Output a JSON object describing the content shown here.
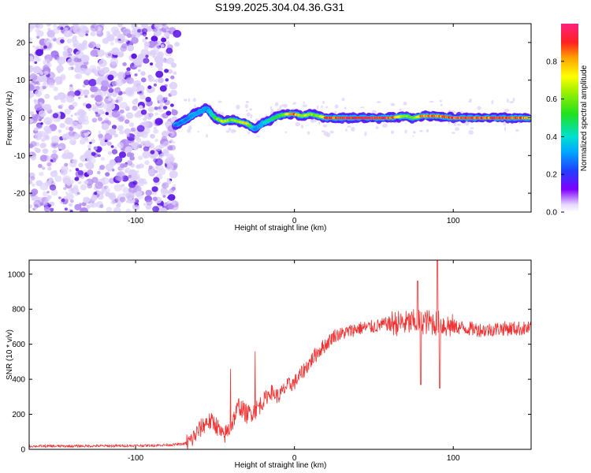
{
  "title": "S199.2025.304.04.36.G31",
  "chart_data": [
    {
      "type": "heatmap",
      "xlabel": "Height of straight line (km)",
      "ylabel": "Frequency (Hz)",
      "xlim": [
        -167,
        149
      ],
      "ylim": [
        -25,
        25
      ],
      "xticks": [
        -100,
        0,
        100
      ],
      "xtick_labels": [
        "-100",
        "0",
        "100"
      ],
      "yticks": [
        -20,
        -10,
        0,
        10,
        20
      ],
      "ytick_labels": [
        "-20",
        "-10",
        "0",
        "10",
        "20"
      ],
      "colorbar": {
        "label": "Normalized spectral amplitude",
        "range": [
          0,
          1
        ],
        "ticks": [
          0.0,
          0.2,
          0.4,
          0.6,
          0.8
        ],
        "tick_labels": [
          "0.0",
          "0.2",
          "0.4",
          "0.6",
          "0.8"
        ]
      },
      "ridge": {
        "x": [
          -75,
          -70,
          -65,
          -60,
          -55,
          -50,
          -45,
          -40,
          -35,
          -30,
          -25,
          -20,
          -15,
          -10,
          -5,
          0,
          5,
          10,
          15,
          20,
          30,
          40,
          50,
          60,
          70,
          75,
          80,
          90,
          100,
          110,
          120,
          130,
          140,
          148
        ],
        "y": [
          -2,
          -1,
          0.5,
          1.5,
          2.5,
          0,
          -1,
          -0.5,
          -1,
          -1.5,
          -3,
          -1.5,
          -0.5,
          0.5,
          1,
          1,
          0.5,
          1,
          0.5,
          0,
          0,
          0,
          0,
          0,
          0.5,
          0,
          0.5,
          0.5,
          0,
          0,
          0,
          0,
          0,
          0
        ],
        "amp": [
          0.25,
          0.3,
          0.3,
          0.35,
          0.3,
          0.55,
          0.75,
          0.6,
          0.7,
          0.8,
          0.3,
          0.35,
          0.5,
          0.55,
          0.7,
          0.9,
          0.65,
          0.7,
          0.6,
          0.9,
          0.95,
          1.0,
          0.95,
          0.95,
          0.65,
          0.6,
          0.85,
          0.9,
          0.9,
          0.95,
          0.9,
          0.95,
          0.9,
          0.85
        ]
      },
      "noise_region_xlim": [
        -167,
        -75
      ],
      "noise_amplitude": 0.1
    },
    {
      "type": "line",
      "xlabel": "Height of straight line (km)",
      "ylabel": "SNR (10 * v/v)",
      "xlim": [
        -167,
        149
      ],
      "ylim": [
        0,
        1080
      ],
      "xticks": [
        -100,
        0,
        100
      ],
      "xtick_labels": [
        "-100",
        "0",
        "100"
      ],
      "yticks": [
        0,
        200,
        400,
        600,
        800,
        1000
      ],
      "ytick_labels": [
        "0",
        "200",
        "400",
        "600",
        "800",
        "1000"
      ],
      "color": "#ee3333",
      "series": [
        {
          "name": "SNR",
          "x": [
            -167,
            -150,
            -130,
            -110,
            -90,
            -80,
            -70,
            -65,
            -60,
            -55,
            -50,
            -45,
            -40,
            -35,
            -30,
            -25,
            -20,
            -15,
            -10,
            -5,
            0,
            5,
            10,
            15,
            20,
            25,
            30,
            40,
            50,
            60,
            70,
            80,
            90,
            100,
            110,
            120,
            130,
            140,
            149
          ],
          "values": [
            18,
            18,
            19,
            20,
            22,
            25,
            30,
            50,
            110,
            160,
            150,
            70,
            130,
            250,
            200,
            220,
            270,
            330,
            300,
            360,
            380,
            440,
            500,
            560,
            600,
            650,
            660,
            690,
            700,
            720,
            720,
            730,
            720,
            700,
            690,
            680,
            690,
            690,
            690
          ]
        }
      ]
    }
  ]
}
